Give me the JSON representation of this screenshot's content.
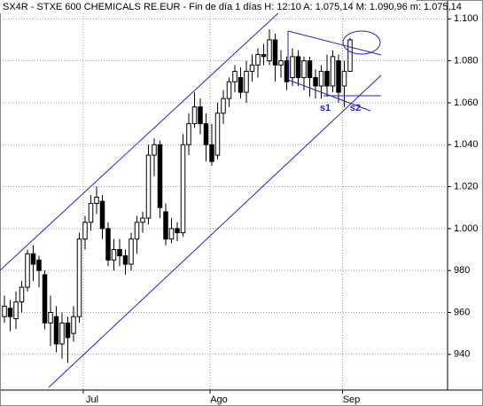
{
  "chart_data": {
    "type": "candlestick",
    "title": "SX4R - STXE 600 CHEMICALS RE.EUR - Fin de día 1 días  H: 12:10  A: 1.075,14  M: 1.090,96  m: 1.075,14",
    "categories": [
      null,
      null,
      null,
      null,
      null,
      null,
      null,
      null,
      null,
      null,
      null,
      null,
      null,
      null,
      "Jul",
      null,
      null,
      null,
      null,
      null,
      null,
      null,
      null,
      null,
      null,
      null,
      null,
      null,
      null,
      null,
      null,
      null,
      null,
      null,
      null,
      null,
      "Ago",
      null,
      null,
      null,
      null,
      null,
      null,
      null,
      null,
      null,
      null,
      null,
      null,
      null,
      null,
      null,
      null,
      null,
      null,
      null,
      null,
      null,
      null,
      "Sep",
      null
    ],
    "open": [
      958,
      962,
      957,
      965,
      972,
      988,
      985,
      978,
      955,
      958,
      945,
      955,
      950,
      958,
      995,
      1003,
      1012,
      1013,
      1000,
      985,
      990,
      987,
      983,
      995,
      1003,
      1005,
      1035,
      1040,
      1008,
      995,
      1000,
      998,
      1040,
      1050,
      1058,
      1050,
      1040,
      1035,
      1055,
      1062,
      1070,
      1072,
      1065,
      1075,
      1078,
      1083,
      1080,
      1090,
      1078,
      1080,
      1072,
      1082,
      1072,
      1080,
      1072,
      1068,
      1075,
      1068,
      1080,
      1068,
      1075
    ],
    "high": [
      968,
      966,
      970,
      975,
      990,
      992,
      987,
      980,
      968,
      963,
      960,
      958,
      963,
      998,
      1006,
      1016,
      1020,
      1016,
      1003,
      995,
      995,
      990,
      998,
      1006,
      1008,
      1040,
      1043,
      1042,
      1012,
      1005,
      1003,
      1045,
      1055,
      1065,
      1062,
      1055,
      1050,
      1060,
      1066,
      1072,
      1078,
      1077,
      1080,
      1083,
      1086,
      1088,
      1095,
      1093,
      1085,
      1082,
      1086,
      1085,
      1082,
      1082,
      1076,
      1078,
      1083,
      1085,
      1083,
      1080,
      1091
    ],
    "low": [
      955,
      951,
      952,
      960,
      970,
      975,
      972,
      952,
      944,
      941,
      938,
      936,
      946,
      955,
      990,
      999,
      1007,
      995,
      982,
      980,
      982,
      978,
      980,
      988,
      998,
      1002,
      1025,
      1005,
      992,
      993,
      994,
      996,
      1035,
      1048,
      1045,
      1032,
      1030,
      1033,
      1050,
      1058,
      1065,
      1062,
      1060,
      1070,
      1072,
      1078,
      1078,
      1070,
      1072,
      1066,
      1068,
      1068,
      1066,
      1063,
      1062,
      1062,
      1063,
      1065,
      1060,
      1058,
      1075
    ],
    "close": [
      963,
      958,
      965,
      972,
      988,
      983,
      980,
      955,
      960,
      945,
      955,
      948,
      958,
      995,
      1003,
      1012,
      1015,
      1000,
      985,
      990,
      987,
      983,
      995,
      1003,
      1005,
      1035,
      1040,
      1010,
      995,
      1000,
      998,
      1040,
      1050,
      1058,
      1050,
      1040,
      1032,
      1055,
      1062,
      1070,
      1075,
      1065,
      1075,
      1078,
      1083,
      1082,
      1090,
      1078,
      1080,
      1070,
      1082,
      1072,
      1080,
      1072,
      1068,
      1075,
      1068,
      1082,
      1065,
      1075,
      1090
    ],
    "ylim": [
      923,
      1109
    ],
    "yticks": [
      {
        "value": 940,
        "label": "940"
      },
      {
        "value": 960,
        "label": "960"
      },
      {
        "value": 980,
        "label": "980"
      },
      {
        "value": 1000,
        "label": "1.000"
      },
      {
        "value": 1020,
        "label": "1.020"
      },
      {
        "value": 1040,
        "label": "1.040"
      },
      {
        "value": 1060,
        "label": "1.060"
      },
      {
        "value": 1080,
        "label": "1.080"
      },
      {
        "value": 1100,
        "label": "1.100"
      }
    ],
    "grid": true,
    "annotations": [
      "s1",
      "s2"
    ]
  }
}
